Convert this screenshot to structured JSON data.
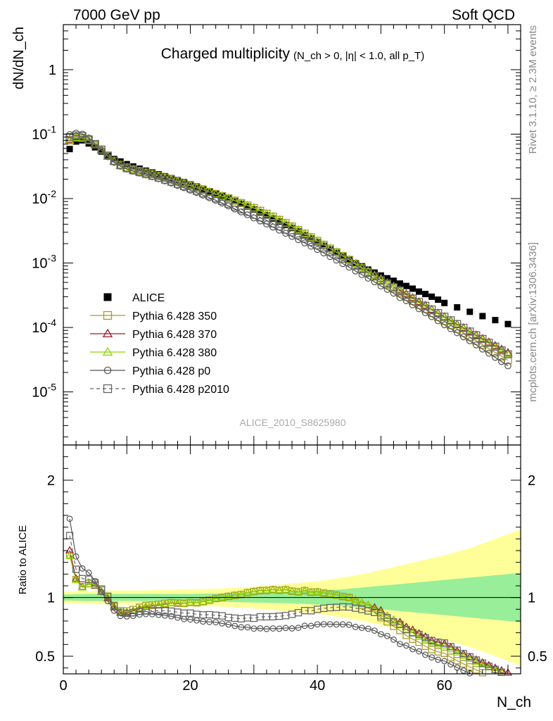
{
  "header": {
    "energy_label": "7000 GeV pp",
    "process_label": "Soft QCD"
  },
  "side_text": {
    "rivet": "Rivet 3.1.10, ≥ 2.3M events",
    "mcplots": "mcplots.cern.ch [arXiv:1306.3436]"
  },
  "analysis_id": "ALICE_2010_S8625980",
  "chart_data": [
    {
      "type": "scatter",
      "title": "Charged multiplicity",
      "title_sub": "(N_ch > 0, |η| < 1.0, all p_T)",
      "xlabel": "N_ch",
      "ylabel": "dN/dN_ch",
      "yscale": "log",
      "xlim": [
        0,
        72
      ],
      "ylim": [
        1.5e-06,
        5
      ],
      "legend_position": "middle-left",
      "x_ticks": [
        0,
        20,
        40,
        60
      ],
      "y_tick_labels": [
        "1",
        "10^-1",
        "10^-2",
        "10^-3",
        "10^-4",
        "10^-5"
      ],
      "series": [
        {
          "name": "ALICE",
          "color": "#000000",
          "marker": "filled-square",
          "x": [
            1,
            2,
            3,
            4,
            5,
            6,
            7,
            8,
            9,
            10,
            11,
            12,
            13,
            14,
            15,
            16,
            17,
            18,
            19,
            20,
            21,
            22,
            23,
            24,
            25,
            26,
            27,
            28,
            29,
            30,
            31,
            32,
            33,
            34,
            35,
            36,
            37,
            38,
            39,
            40,
            41,
            42,
            43,
            44,
            45,
            46,
            47,
            48,
            49,
            50,
            51,
            52,
            53,
            54,
            55,
            56,
            57,
            58,
            59,
            60,
            62,
            64,
            66,
            68,
            70
          ],
          "y": [
            0.0587,
            0.0768,
            0.0802,
            0.0717,
            0.0624,
            0.0537,
            0.0459,
            0.0411,
            0.0376,
            0.0342,
            0.0315,
            0.0291,
            0.0271,
            0.0254,
            0.0238,
            0.0222,
            0.0207,
            0.0193,
            0.018,
            0.0166,
            0.0154,
            0.0142,
            0.013,
            0.0119,
            0.0109,
            0.01,
            0.0091,
            0.0083,
            0.0075,
            0.0068,
            0.0061,
            0.0055,
            0.0049,
            0.0044,
            0.0039,
            0.0035,
            0.0031,
            0.0027,
            0.0024,
            0.0021,
            0.00185,
            0.00163,
            0.00144,
            0.00127,
            0.00112,
            0.001,
            0.00089,
            0.00079,
            0.00071,
            0.00064,
            0.00058,
            0.00053,
            0.00048,
            0.00044,
            0.0004,
            0.00036,
            0.00033,
            0.0003,
            0.00027,
            0.00024,
            0.000205,
            0.000175,
            0.00015,
            0.00013,
            0.000113
          ]
        },
        {
          "name": "Pythia 6.428 350",
          "color": "#a89b2a",
          "marker": "open-square",
          "x": [
            1,
            2,
            3,
            4,
            5,
            6,
            7,
            8,
            9,
            10,
            11,
            12,
            13,
            14,
            15,
            16,
            17,
            18,
            19,
            20,
            21,
            22,
            23,
            24,
            25,
            26,
            27,
            28,
            29,
            30,
            31,
            32,
            33,
            34,
            35,
            36,
            37,
            38,
            39,
            40,
            41,
            42,
            43,
            44,
            45,
            46,
            47,
            48,
            49,
            50,
            51,
            52,
            53,
            54,
            55,
            56,
            57,
            58,
            59,
            60,
            61,
            62,
            63,
            64,
            65,
            66,
            67,
            68,
            69,
            70
          ],
          "y": [
            0.08,
            0.0886,
            0.0876,
            0.0803,
            0.0693,
            0.0571,
            0.0463,
            0.0384,
            0.0334,
            0.0303,
            0.0283,
            0.0267,
            0.0253,
            0.0238,
            0.0224,
            0.0211,
            0.0198,
            0.0184,
            0.0171,
            0.0159,
            0.0147,
            0.0137,
            0.0127,
            0.0118,
            0.0109,
            0.0101,
            0.00927,
            0.00851,
            0.00781,
            0.00715,
            0.00646,
            0.00583,
            0.00523,
            0.00467,
            0.00416,
            0.00369,
            0.00325,
            0.00286,
            0.00251,
            0.0022,
            0.00192,
            0.00168,
            0.00147,
            0.00128,
            0.00112,
            0.00096,
            0.00083,
            0.00072,
            0.00062,
            0.00053,
            0.00046,
            0.0004,
            0.000345,
            0.000298,
            0.000258,
            0.000223,
            0.000193,
            0.000167,
            0.000145,
            0.000126,
            0.000109,
            9.48e-05,
            8.23e-05,
            7.15e-05,
            6.22e-05,
            5.4e-05,
            4.69e-05,
            4.08e-05,
            3.55e-05,
            3.1e-05
          ]
        },
        {
          "name": "Pythia 6.428 370",
          "color": "#9e1b2e",
          "marker": "open-triangle",
          "x": [
            1,
            2,
            3,
            4,
            5,
            6,
            7,
            8,
            9,
            10,
            11,
            12,
            13,
            14,
            15,
            16,
            17,
            18,
            19,
            20,
            21,
            22,
            23,
            24,
            25,
            26,
            27,
            28,
            29,
            30,
            31,
            32,
            33,
            34,
            35,
            36,
            37,
            38,
            39,
            40,
            41,
            42,
            43,
            44,
            45,
            46,
            47,
            48,
            49,
            50,
            51,
            52,
            53,
            54,
            55,
            56,
            57,
            58,
            59,
            60,
            61,
            62,
            63,
            64,
            65,
            66,
            67,
            68,
            69,
            70
          ],
          "y": [
            0.0823,
            0.0892,
            0.0874,
            0.0798,
            0.0687,
            0.0564,
            0.0456,
            0.0377,
            0.0328,
            0.0298,
            0.0279,
            0.0263,
            0.025,
            0.0236,
            0.0222,
            0.0209,
            0.0197,
            0.0183,
            0.0171,
            0.0159,
            0.0147,
            0.0137,
            0.0127,
            0.0118,
            0.0109,
            0.0101,
            0.00927,
            0.00851,
            0.00781,
            0.00715,
            0.00646,
            0.00583,
            0.00523,
            0.00467,
            0.00416,
            0.00369,
            0.00325,
            0.00286,
            0.00251,
            0.0022,
            0.00192,
            0.00168,
            0.00147,
            0.00128,
            0.00112,
            0.00098,
            0.00085,
            0.00074,
            0.00065,
            0.00057,
            0.00049,
            0.00043,
            0.00038,
            0.00033,
            0.00029,
            0.00025,
            0.00022,
            0.00019,
            0.000167,
            0.000146,
            0.000128,
            0.000112,
            9.85e-05,
            8.65e-05,
            7.61e-05,
            6.7e-05,
            5.91e-05,
            5.21e-05,
            4.6e-05,
            4.07e-05
          ]
        },
        {
          "name": "Pythia 6.428 380",
          "color": "#8fd400",
          "marker": "open-triangle",
          "x": [
            1,
            2,
            3,
            4,
            5,
            6,
            7,
            8,
            9,
            10,
            11,
            12,
            13,
            14,
            15,
            16,
            17,
            18,
            19,
            20,
            21,
            22,
            23,
            24,
            25,
            26,
            27,
            28,
            29,
            30,
            31,
            32,
            33,
            34,
            35,
            36,
            37,
            38,
            39,
            40,
            41,
            42,
            43,
            44,
            45,
            46,
            47,
            48,
            49,
            50,
            51,
            52,
            53,
            54,
            55,
            56,
            57,
            58,
            59,
            60,
            61,
            62,
            63,
            64,
            65,
            66,
            67,
            68,
            69,
            70
          ],
          "y": [
            0.0795,
            0.0883,
            0.0871,
            0.0799,
            0.069,
            0.0567,
            0.046,
            0.0381,
            0.0331,
            0.0301,
            0.0281,
            0.0265,
            0.0251,
            0.0237,
            0.0223,
            0.021,
            0.0197,
            0.0184,
            0.0171,
            0.0159,
            0.0147,
            0.0137,
            0.0127,
            0.0118,
            0.0109,
            0.0101,
            0.00927,
            0.00851,
            0.00781,
            0.00715,
            0.00646,
            0.00583,
            0.00523,
            0.00467,
            0.00416,
            0.00369,
            0.00325,
            0.00286,
            0.00251,
            0.0022,
            0.00192,
            0.00168,
            0.00147,
            0.00128,
            0.00112,
            0.00098,
            0.00085,
            0.00074,
            0.00064,
            0.00056,
            0.00049,
            0.00043,
            0.00037,
            0.00032,
            0.00028,
            0.00024,
            0.00021,
            0.000185,
            0.000162,
            0.000142,
            0.000124,
            0.000109,
            9.55e-05,
            8.37e-05,
            7.34e-05,
            6.44e-05,
            5.66e-05,
            4.97e-05,
            4.37e-05,
            3.85e-05
          ]
        },
        {
          "name": "Pythia 6.428 p0",
          "color": "#555555",
          "marker": "open-circle",
          "x": [
            1,
            2,
            3,
            4,
            5,
            6,
            7,
            8,
            9,
            10,
            11,
            12,
            13,
            14,
            15,
            16,
            17,
            18,
            19,
            20,
            21,
            22,
            23,
            24,
            25,
            26,
            27,
            28,
            29,
            30,
            31,
            32,
            33,
            34,
            35,
            36,
            37,
            38,
            39,
            40,
            41,
            42,
            43,
            44,
            45,
            46,
            47,
            48,
            49,
            50,
            51,
            52,
            53,
            54,
            55,
            56,
            57,
            58,
            59,
            60,
            61,
            62,
            63,
            64,
            65,
            66,
            67,
            68,
            69,
            70
          ],
          "y": [
            0.0981,
            0.1037,
            0.1001,
            0.0869,
            0.0712,
            0.0562,
            0.0445,
            0.0365,
            0.0317,
            0.0287,
            0.0266,
            0.0249,
            0.0233,
            0.0218,
            0.0203,
            0.0188,
            0.0174,
            0.016,
            0.0147,
            0.0135,
            0.0124,
            0.0113,
            0.0103,
            0.0094,
            0.0085,
            0.0077,
            0.0069,
            0.0062,
            0.0056,
            0.005,
            0.0045,
            0.00403,
            0.00361,
            0.00323,
            0.00289,
            0.00258,
            0.0023,
            0.00205,
            0.00182,
            0.00162,
            0.00143,
            0.00126,
            0.00111,
            0.00098,
            0.00086,
            0.00075,
            0.00066,
            0.00058,
            0.00051,
            0.00044,
            0.00039,
            0.00034,
            0.00029,
            0.00026,
            0.000224,
            0.000195,
            0.000169,
            0.000147,
            0.000127,
            0.00011,
            9.55e-05,
            8.27e-05,
            7.16e-05,
            6.2e-05,
            5.36e-05,
            4.62e-05,
            3.99e-05,
            3.43e-05,
            2.95e-05,
            2.54e-05
          ]
        },
        {
          "name": "Pythia 6.428 p2010",
          "color": "#666666",
          "marker": "open-square",
          "dashed": true,
          "x": [
            1,
            2,
            3,
            4,
            5,
            6,
            7,
            8,
            9,
            10,
            11,
            12,
            13,
            14,
            15,
            16,
            17,
            18,
            19,
            20,
            21,
            22,
            23,
            24,
            25,
            26,
            27,
            28,
            29,
            30,
            31,
            32,
            33,
            34,
            35,
            36,
            37,
            38,
            39,
            40,
            41,
            42,
            43,
            44,
            45,
            46,
            47,
            48,
            49,
            50,
            51,
            52,
            53,
            54,
            55,
            56,
            57,
            58,
            59,
            60,
            61,
            62,
            63,
            64,
            65,
            66,
            67,
            68,
            69,
            70
          ],
          "y": [
            0.0897,
            0.0953,
            0.0931,
            0.0829,
            0.0702,
            0.0576,
            0.0464,
            0.0381,
            0.0329,
            0.0296,
            0.0274,
            0.0257,
            0.0241,
            0.0226,
            0.0211,
            0.0197,
            0.0183,
            0.0169,
            0.0156,
            0.0144,
            0.0132,
            0.0121,
            0.0111,
            0.0101,
            0.0092,
            0.0083,
            0.0075,
            0.0068,
            0.0062,
            0.0056,
            0.0051,
            0.0046,
            0.0041,
            0.0037,
            0.0033,
            0.003,
            0.0027,
            0.0024,
            0.00213,
            0.00189,
            0.00168,
            0.00149,
            0.00132,
            0.00117,
            0.00103,
            0.00091,
            0.0008,
            0.0007,
            0.00062,
            0.00054,
            0.00048,
            0.00042,
            0.00037,
            0.00032,
            0.00028,
            0.000247,
            0.000217,
            0.00019,
            0.000167,
            0.000147,
            0.000129,
            0.000113,
            9.88e-05,
            8.65e-05,
            7.57e-05,
            6.62e-05,
            5.78e-05,
            5.04e-05,
            4.4e-05,
            3.84e-05
          ]
        }
      ]
    },
    {
      "type": "line",
      "ylabel": "Ratio to ALICE",
      "xlabel": "N_ch",
      "xlim": [
        0,
        72
      ],
      "ylim": [
        0.35,
        2.3
      ],
      "x_ticks": [
        0,
        20,
        40,
        60
      ],
      "y_ticks": [
        0.5,
        1,
        2
      ],
      "reference_line": 1,
      "uncertainty_bands": {
        "x": [
          0,
          4,
          8,
          12,
          16,
          20,
          24,
          28,
          32,
          36,
          40,
          44,
          48,
          52,
          56,
          60,
          64,
          68,
          72
        ],
        "inner_half_width": [
          0.025,
          0.03,
          0.03,
          0.03,
          0.03,
          0.03,
          0.035,
          0.04,
          0.045,
          0.05,
          0.06,
          0.07,
          0.09,
          0.11,
          0.13,
          0.15,
          0.17,
          0.19,
          0.21
        ],
        "outer_half_width": [
          0.05,
          0.055,
          0.06,
          0.06,
          0.065,
          0.07,
          0.075,
          0.085,
          0.1,
          0.12,
          0.14,
          0.17,
          0.21,
          0.26,
          0.31,
          0.36,
          0.42,
          0.5,
          0.58
        ],
        "inner_color": "#99ee99",
        "outer_color": "#ffff99"
      }
    }
  ]
}
